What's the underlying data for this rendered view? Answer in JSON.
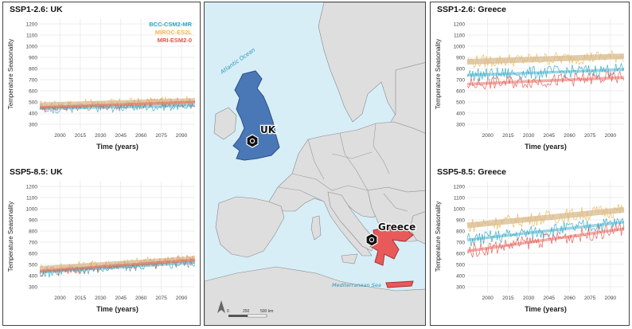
{
  "colors": {
    "bcc": "#2aa6c4",
    "miroc": "#f2b74a",
    "mri": "#e8524a",
    "trend_miroc": "#d8bc90",
    "land": "#dcdcdc",
    "sea": "#d7eef7",
    "uk_fill": "#4a78b7",
    "greece_fill": "#e85a5a"
  },
  "charts": [
    {
      "id": "ssp126-uk",
      "title": "SSP1-2.6: UK",
      "ylabel": "Temperature Seasonality",
      "xlabel": "Time (years)",
      "show_legend": true,
      "bcc_start": 440,
      "bcc_end": 470,
      "miroc_start": 470,
      "miroc_end": 510,
      "mri_start": 450,
      "mri_end": 500,
      "amp": 45
    },
    {
      "id": "ssp585-uk",
      "title": "SSP5-8.5: UK",
      "ylabel": "Temperature Seasonality",
      "xlabel": "Time (years)",
      "show_legend": false,
      "bcc_start": 430,
      "bcc_end": 520,
      "miroc_start": 460,
      "miroc_end": 550,
      "mri_start": 440,
      "mri_end": 540,
      "amp": 50
    },
    {
      "id": "ssp126-greece",
      "title": "SSP1-2.6: Greece",
      "ylabel": "Temperature Seasonality",
      "xlabel": "Time (years)",
      "show_legend": false,
      "bcc_start": 740,
      "bcc_end": 790,
      "miroc_start": 860,
      "miroc_end": 910,
      "mri_start": 660,
      "mri_end": 720,
      "amp": 60
    },
    {
      "id": "ssp585-greece",
      "title": "SSP5-8.5: Greece",
      "ylabel": "Temperature Seasonality",
      "xlabel": "Time (years)",
      "show_legend": false,
      "bcc_start": 720,
      "bcc_end": 880,
      "miroc_start": 850,
      "miroc_end": 990,
      "mri_start": 620,
      "mri_end": 820,
      "amp": 65
    }
  ],
  "chart_data": [
    {
      "type": "line",
      "title": "SSP1-2.6: UK",
      "xlabel": "Time (years)",
      "ylabel": "Temperature Seasonality",
      "xlim": [
        1985,
        2100
      ],
      "ylim": [
        250,
        1250
      ],
      "xticks": [
        "2000",
        "2015",
        "2030",
        "2045",
        "2060",
        "2075",
        "2090"
      ],
      "yticks": [
        "300",
        "400",
        "500",
        "600",
        "700",
        "800",
        "900",
        "1000",
        "1100",
        "1200"
      ],
      "series": [
        {
          "name": "BCC-CSM2-MR",
          "trend": [
            440,
            470
          ]
        },
        {
          "name": "MIROC-ES2L",
          "trend": [
            470,
            510
          ]
        },
        {
          "name": "MRI-ESM2-0",
          "trend": [
            450,
            500
          ]
        }
      ]
    },
    {
      "type": "line",
      "title": "SSP5-8.5: UK",
      "xlabel": "Time (years)",
      "ylabel": "Temperature Seasonality",
      "xlim": [
        1985,
        2100
      ],
      "ylim": [
        250,
        1250
      ],
      "xticks": [
        "2000",
        "2015",
        "2030",
        "2045",
        "2060",
        "2075",
        "2090"
      ],
      "yticks": [
        "300",
        "400",
        "500",
        "600",
        "700",
        "800",
        "900",
        "1000",
        "1100",
        "1200"
      ],
      "series": [
        {
          "name": "BCC-CSM2-MR",
          "trend": [
            430,
            520
          ]
        },
        {
          "name": "MIROC-ES2L",
          "trend": [
            460,
            550
          ]
        },
        {
          "name": "MRI-ESM2-0",
          "trend": [
            440,
            540
          ]
        }
      ]
    },
    {
      "type": "line",
      "title": "SSP1-2.6: Greece",
      "xlabel": "Time (years)",
      "ylabel": "Temperature Seasonality",
      "xlim": [
        1985,
        2100
      ],
      "ylim": [
        250,
        1250
      ],
      "xticks": [
        "2000",
        "2015",
        "2030",
        "2045",
        "2060",
        "2075",
        "2090"
      ],
      "yticks": [
        "300",
        "400",
        "500",
        "600",
        "700",
        "800",
        "900",
        "1000",
        "1100",
        "1200"
      ],
      "series": [
        {
          "name": "BCC-CSM2-MR",
          "trend": [
            740,
            790
          ]
        },
        {
          "name": "MIROC-ES2L",
          "trend": [
            860,
            910
          ]
        },
        {
          "name": "MRI-ESM2-0",
          "trend": [
            660,
            720
          ]
        }
      ]
    },
    {
      "type": "line",
      "title": "SSP5-8.5: Greece",
      "xlabel": "Time (years)",
      "ylabel": "Temperature Seasonality",
      "xlim": [
        1985,
        2100
      ],
      "ylim": [
        250,
        1250
      ],
      "xticks": [
        "2000",
        "2015",
        "2030",
        "2045",
        "2060",
        "2075",
        "2090"
      ],
      "yticks": [
        "300",
        "400",
        "500",
        "600",
        "700",
        "800",
        "900",
        "1000",
        "1100",
        "1200"
      ],
      "series": [
        {
          "name": "BCC-CSM2-MR",
          "trend": [
            720,
            880
          ]
        },
        {
          "name": "MIROC-ES2L",
          "trend": [
            850,
            990
          ]
        },
        {
          "name": "MRI-ESM2-0",
          "trend": [
            620,
            820
          ]
        }
      ]
    }
  ],
  "legend": [
    "BCC-CSM2-MR",
    "MIROC-ES2L",
    "MRI-ESM2-0"
  ],
  "map": {
    "ocean_label": "Atlantic Ocean",
    "sea_label": "Mediterranean Sea",
    "uk_label": "UK",
    "greece_label": "Greece",
    "scale": {
      "zero": "0",
      "mid": "250",
      "end": "500 km"
    }
  }
}
